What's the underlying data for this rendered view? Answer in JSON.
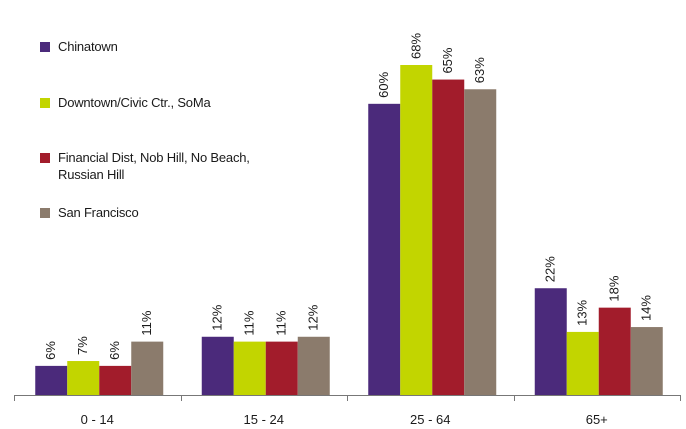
{
  "chart_data": {
    "type": "bar",
    "categories": [
      "0 - 14",
      "15 - 24",
      "25 - 64",
      "65+"
    ],
    "series": [
      {
        "name": "Chinatown",
        "values": [
          6,
          12,
          60,
          22
        ],
        "labels": [
          "6%",
          "12%",
          "60%",
          "22%"
        ],
        "color": "#4b2a7b"
      },
      {
        "name": "Downtown/Civic Ctr., SoMa",
        "values": [
          7,
          11,
          68,
          13
        ],
        "labels": [
          "7%",
          "11%",
          "68%",
          "13%"
        ],
        "color": "#c2d500"
      },
      {
        "name": "Financial Dist, Nob Hill, No Beach, Russian Hill",
        "values": [
          6,
          11,
          65,
          18
        ],
        "labels": [
          "6%",
          "11%",
          "65%",
          "18%"
        ],
        "color": "#a21c2b"
      },
      {
        "name": "San Francisco",
        "values": [
          11,
          12,
          63,
          14
        ],
        "labels": [
          "11%",
          "12%",
          "63%",
          "14%"
        ],
        "color": "#8b7b6c"
      }
    ],
    "ylim": [
      0,
      75
    ],
    "grid": false,
    "legend_position": "top-left",
    "label_rotation": -90
  }
}
